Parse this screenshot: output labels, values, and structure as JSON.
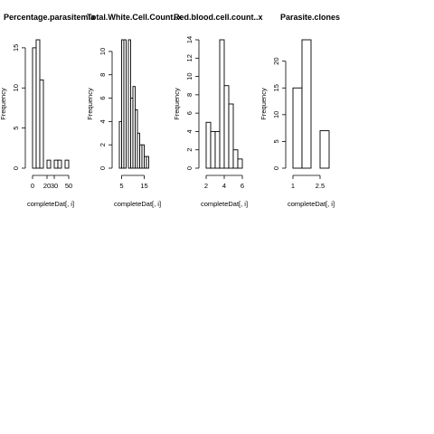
{
  "chart_data": [
    {
      "type": "bar",
      "title": "Percentage.parasitemia",
      "xlabel": "completeDat[, i]",
      "ylabel": "Frequency",
      "xlim": [
        0,
        50
      ],
      "ylim": [
        0,
        16
      ],
      "xticks": [
        0,
        20,
        30,
        50
      ],
      "yticks": [
        0,
        5,
        10,
        15
      ],
      "bins": [
        [
          0,
          5
        ],
        [
          5,
          10
        ],
        [
          10,
          15
        ],
        [
          15,
          20
        ],
        [
          20,
          25
        ],
        [
          25,
          30
        ],
        [
          30,
          35
        ],
        [
          35,
          40
        ],
        [
          40,
          45
        ],
        [
          45,
          50
        ]
      ],
      "values": [
        15,
        16,
        11,
        0,
        1,
        0,
        1,
        1,
        0,
        1
      ]
    },
    {
      "type": "bar",
      "title": "Total.White.Cell.Count..x",
      "xlabel": "completeDat[, i]",
      "ylabel": "Frequency",
      "xlim": [
        4,
        20
      ],
      "ylim": [
        0,
        11
      ],
      "xticks": [
        5,
        15
      ],
      "yticks": [
        0,
        2,
        4,
        6,
        8,
        10
      ],
      "bins": [
        [
          4,
          5
        ],
        [
          5,
          6
        ],
        [
          6,
          7
        ],
        [
          7,
          8
        ],
        [
          8,
          9
        ],
        [
          9,
          10
        ],
        [
          10,
          11
        ],
        [
          11,
          12
        ],
        [
          12,
          13
        ],
        [
          13,
          14
        ],
        [
          14,
          15
        ],
        [
          15,
          16
        ],
        [
          16,
          17
        ],
        [
          17,
          18
        ],
        [
          18,
          19
        ],
        [
          19,
          20
        ]
      ],
      "values": [
        4,
        11,
        11,
        0,
        11,
        6,
        7,
        5,
        3,
        2,
        2,
        1,
        1,
        0,
        0,
        0
      ]
    },
    {
      "type": "bar",
      "title": "Red.blood.cell.count..x",
      "xlabel": "completeDat[, i]",
      "ylabel": "Frequency",
      "xlim": [
        2,
        6
      ],
      "ylim": [
        0,
        14
      ],
      "xticks": [
        2,
        4,
        6
      ],
      "yticks": [
        0,
        2,
        4,
        6,
        8,
        10,
        12,
        14
      ],
      "bins": [
        [
          2,
          2.5
        ],
        [
          2.5,
          3
        ],
        [
          3,
          3.5
        ],
        [
          3.5,
          4
        ],
        [
          4,
          4.5
        ],
        [
          4.5,
          5
        ],
        [
          5,
          5.5
        ],
        [
          5.5,
          6
        ]
      ],
      "values": [
        5,
        4,
        4,
        14,
        9,
        7,
        2,
        1
      ]
    },
    {
      "type": "bar",
      "title": "Parasite.clones",
      "xlabel": "completeDat[, i]",
      "ylabel": "Frequency",
      "xlim": [
        1.0,
        3.0
      ],
      "ylim": [
        0,
        24
      ],
      "xticks": [
        1.0,
        2.5
      ],
      "yticks": [
        0,
        5,
        10,
        15,
        20
      ],
      "bins": [
        [
          1.0,
          1.5
        ],
        [
          1.5,
          2.0
        ],
        [
          2.0,
          2.5
        ],
        [
          2.5,
          3.0
        ]
      ],
      "values": [
        15,
        24,
        0,
        7
      ]
    }
  ]
}
